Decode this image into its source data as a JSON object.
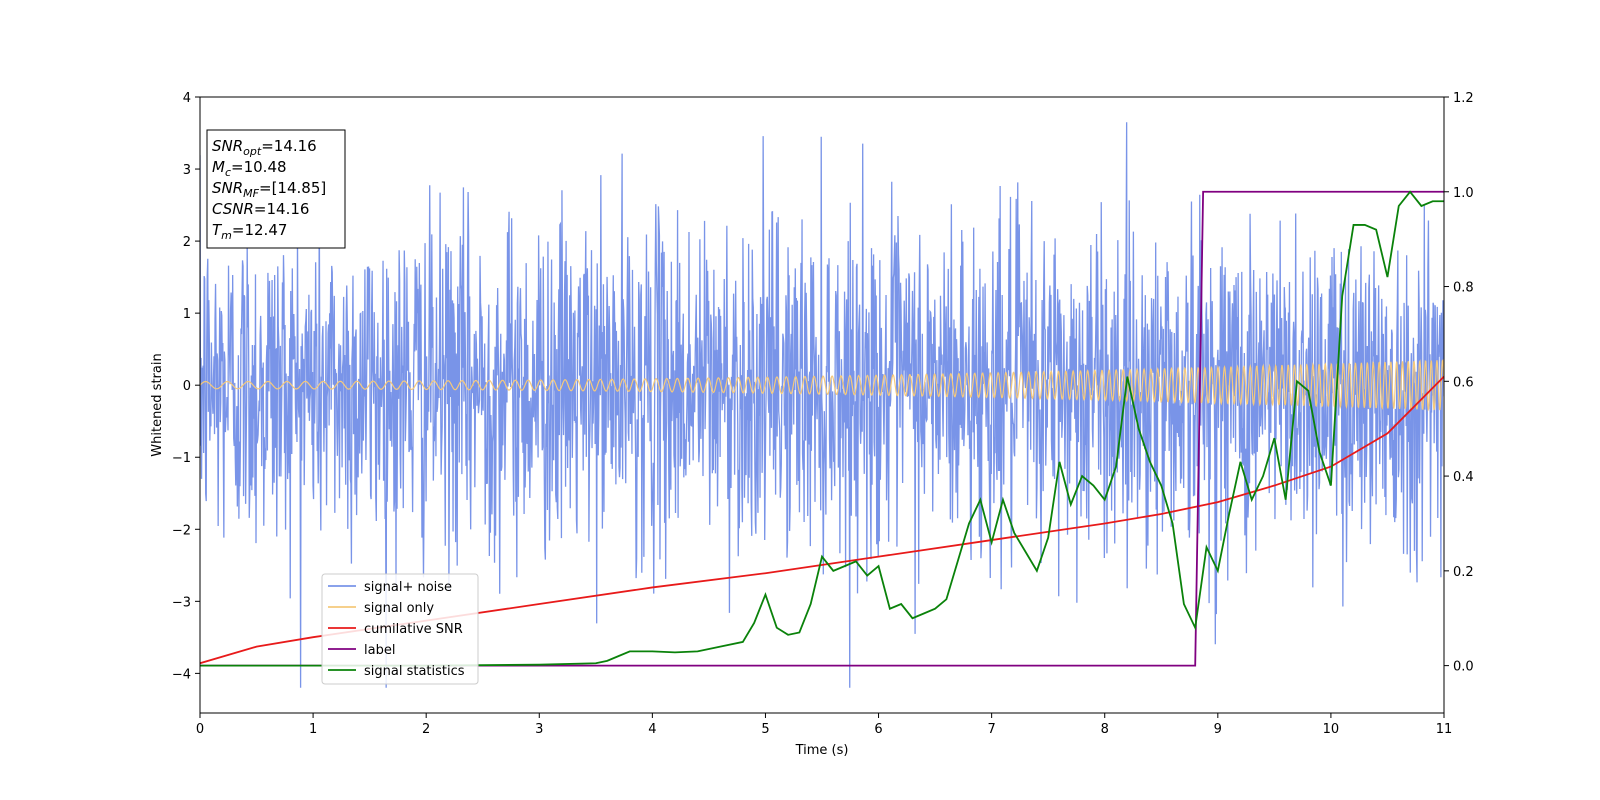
{
  "chart_data": {
    "type": "line",
    "title": "",
    "xlabel": "Time (s)",
    "ylabel": "Whitened strain",
    "xlim": [
      0,
      11
    ],
    "ylim": [
      -4.55,
      4
    ],
    "ylim_right": [
      -0.1,
      1.2
    ],
    "xticks": [
      0,
      1,
      2,
      3,
      4,
      5,
      6,
      7,
      8,
      9,
      10,
      11
    ],
    "yticks": [
      -4,
      -3,
      -2,
      -1,
      0,
      1,
      2,
      3,
      4
    ],
    "yticks_right": [
      "0.0",
      "0.2",
      "0.4",
      "0.6",
      "0.8",
      "1.0",
      "1.2"
    ],
    "grid": false,
    "legend_position": "lower-left",
    "annotations": [
      {
        "main": "SNR",
        "sub": "opt",
        "value": "=14.16"
      },
      {
        "main": "M",
        "sub": "c",
        "value": "=10.48"
      },
      {
        "main": "SNR",
        "sub": "MF",
        "value": "=[14.85]"
      },
      {
        "main": "CSNR",
        "sub": "",
        "value": "=14.16"
      },
      {
        "main": "T",
        "sub": "m",
        "value": "=12.47"
      }
    ],
    "series": [
      {
        "name": "signal+ noise",
        "axis": "left",
        "color": "#7994e8",
        "style": "noise",
        "noise_std": 1.15,
        "range": [
          -4.2,
          3.65
        ]
      },
      {
        "name": "signal only",
        "axis": "left",
        "color": "#f5c97c",
        "style": "chirp",
        "amplitude_start": 0.05,
        "amplitude_end": 0.35,
        "frequency_start": 5,
        "frequency_end": 20
      },
      {
        "name": "cumilative SNR",
        "axis": "right",
        "color": "#e81a1a",
        "x": [
          0,
          0.5,
          1,
          2,
          3,
          4,
          5,
          6,
          7,
          8,
          8.5,
          9,
          9.5,
          10,
          10.5,
          11
        ],
        "y": [
          0.005,
          0.04,
          0.06,
          0.095,
          0.13,
          0.165,
          0.195,
          0.23,
          0.265,
          0.3,
          0.32,
          0.345,
          0.38,
          0.42,
          0.49,
          0.61
        ]
      },
      {
        "name": "label",
        "axis": "right",
        "color": "#800080",
        "x": [
          0,
          8.8,
          8.87,
          11
        ],
        "y": [
          0.0,
          0.0,
          1.0,
          1.0
        ]
      },
      {
        "name": "signal statistics",
        "axis": "right",
        "color": "#0a820a",
        "x": [
          0,
          1,
          2,
          3,
          3.5,
          3.6,
          3.7,
          3.8,
          4.0,
          4.2,
          4.4,
          4.6,
          4.8,
          4.9,
          5.0,
          5.1,
          5.2,
          5.3,
          5.4,
          5.5,
          5.6,
          5.7,
          5.8,
          5.9,
          6.0,
          6.1,
          6.2,
          6.3,
          6.4,
          6.5,
          6.6,
          6.7,
          6.8,
          6.9,
          7.0,
          7.1,
          7.2,
          7.3,
          7.4,
          7.5,
          7.6,
          7.7,
          7.8,
          7.9,
          8.0,
          8.1,
          8.2,
          8.3,
          8.4,
          8.5,
          8.6,
          8.7,
          8.8,
          8.9,
          9.0,
          9.1,
          9.2,
          9.3,
          9.4,
          9.5,
          9.6,
          9.7,
          9.8,
          9.9,
          10.0,
          10.1,
          10.2,
          10.3,
          10.4,
          10.5,
          10.6,
          10.7,
          10.8,
          10.9,
          11.0
        ],
        "y": [
          0.0,
          0.0,
          0.0,
          0.002,
          0.005,
          0.01,
          0.02,
          0.03,
          0.03,
          0.028,
          0.03,
          0.04,
          0.05,
          0.09,
          0.15,
          0.08,
          0.065,
          0.07,
          0.13,
          0.23,
          0.2,
          0.21,
          0.22,
          0.19,
          0.21,
          0.12,
          0.13,
          0.1,
          0.11,
          0.12,
          0.14,
          0.22,
          0.3,
          0.35,
          0.26,
          0.35,
          0.28,
          0.24,
          0.2,
          0.27,
          0.43,
          0.34,
          0.4,
          0.38,
          0.35,
          0.42,
          0.61,
          0.5,
          0.43,
          0.38,
          0.3,
          0.13,
          0.08,
          0.25,
          0.2,
          0.32,
          0.43,
          0.35,
          0.4,
          0.48,
          0.35,
          0.6,
          0.58,
          0.45,
          0.38,
          0.78,
          0.93,
          0.93,
          0.92,
          0.82,
          0.97,
          1.0,
          0.97,
          0.98,
          0.98
        ]
      }
    ]
  }
}
